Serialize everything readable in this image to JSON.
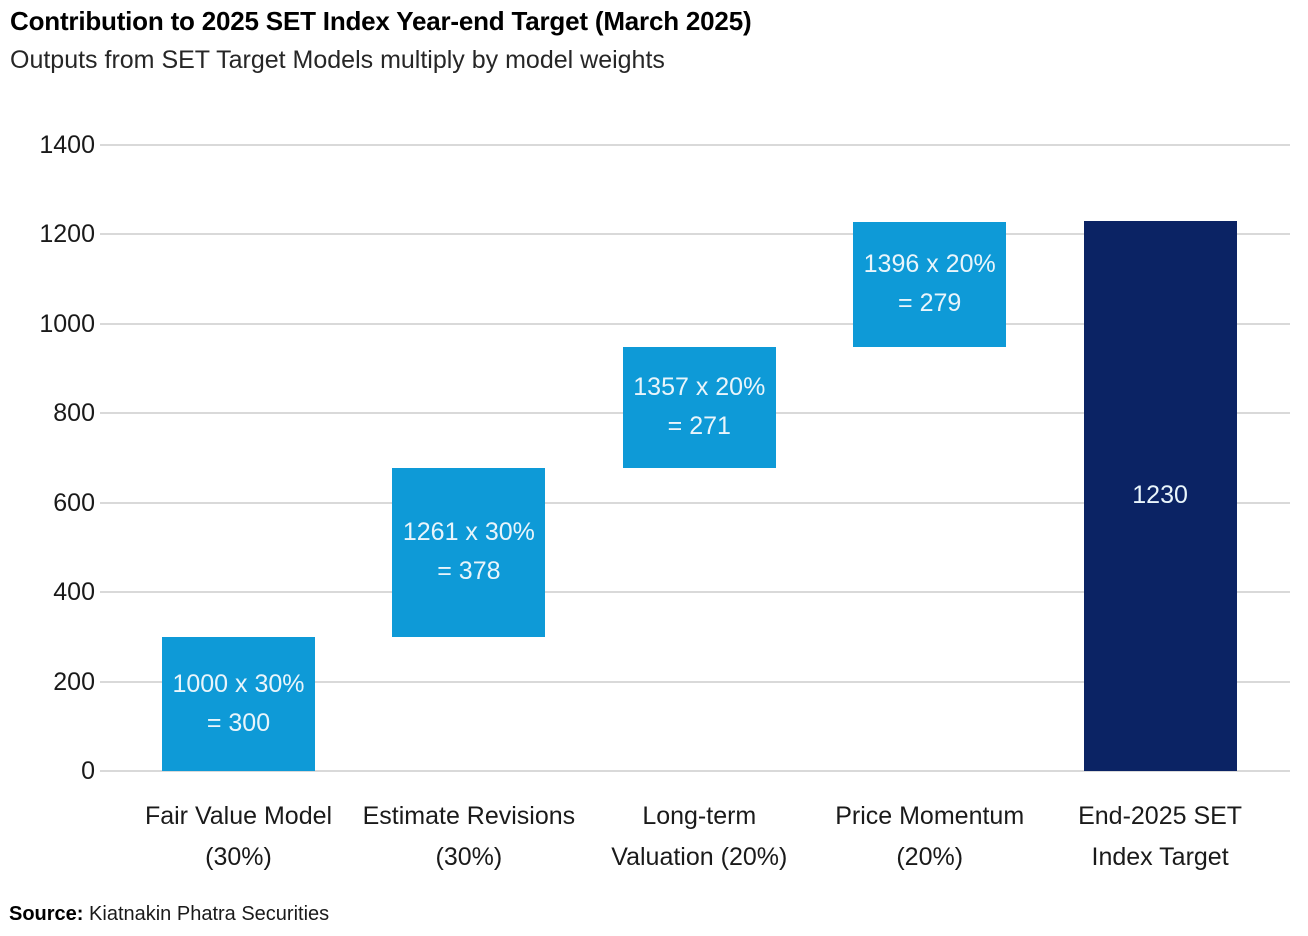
{
  "chart_data": {
    "type": "bar",
    "subtype": "waterfall",
    "title": "Contribution to 2025 SET Index Year-end Target (March 2025)",
    "subtitle": "Outputs from SET Target Models multiply by model weights",
    "xlabel": "",
    "ylabel": "",
    "ylim": [
      0,
      1400
    ],
    "yticks": [
      0,
      200,
      400,
      600,
      800,
      1000,
      1200,
      1400
    ],
    "grid": "horizontal",
    "legend": "none",
    "colors": {
      "segment_blue": "#0E9AD7",
      "total_navy": "#0B2364",
      "gridline": "#D9D9D9",
      "bar_label_text": "#E9F5FB"
    },
    "bars": [
      {
        "category": "Fair Value Model\n(30%)",
        "start": 0,
        "end": 300,
        "value": 300,
        "label": "1000 x 30%\n= 300",
        "color": "segment_blue"
      },
      {
        "category": "Estimate Revisions\n(30%)",
        "start": 300,
        "end": 678,
        "value": 378,
        "label": "1261 x 30%\n= 378",
        "color": "segment_blue"
      },
      {
        "category": "Long-term\nValuation (20%)",
        "start": 678,
        "end": 949,
        "value": 271,
        "label": "1357 x 20%\n= 271",
        "color": "segment_blue"
      },
      {
        "category": "Price Momentum\n(20%)",
        "start": 949,
        "end": 1228,
        "value": 279,
        "label": "1396 x 20%\n= 279",
        "color": "segment_blue"
      },
      {
        "category": "End-2025 SET\nIndex Target",
        "start": 0,
        "end": 1230,
        "value": 1230,
        "label": "1230",
        "color": "total_navy"
      }
    ]
  },
  "footer": {
    "source_label": "Source:",
    "source_text": "Kiatnakin Phatra Securities"
  }
}
